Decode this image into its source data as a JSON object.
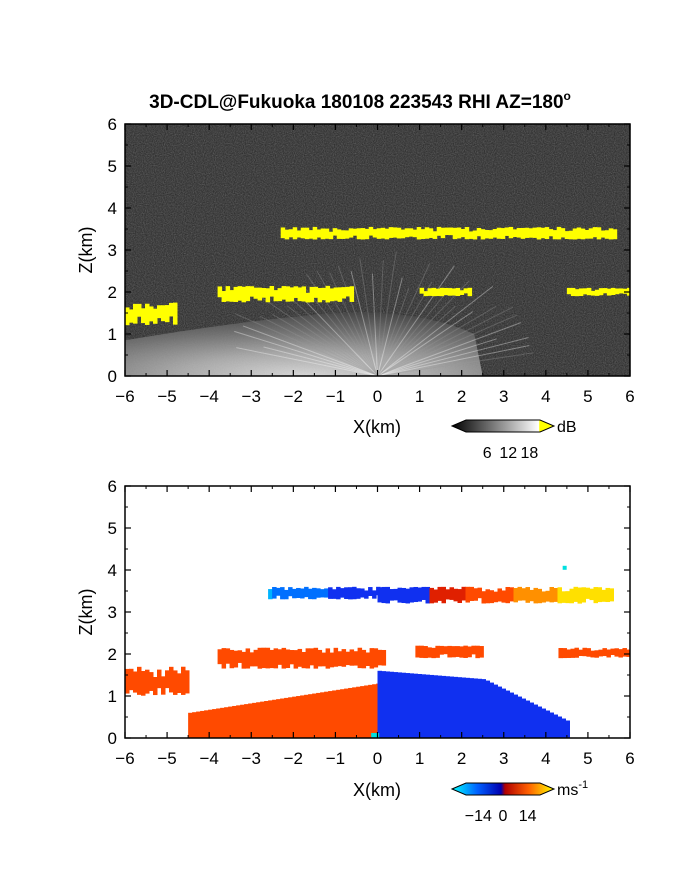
{
  "chart_data": [
    {
      "type": "heatmap",
      "panel": "reflectivity",
      "title": "3D-CDL@Fukuoka 180108 223543 RHI AZ=180",
      "title_superscript": "o",
      "xlabel": "X(km)",
      "ylabel": "Z(km)",
      "xlim": [
        -6,
        6
      ],
      "ylim": [
        0,
        6
      ],
      "xticks": [
        "-6",
        "-5",
        "-4",
        "-3",
        "-2",
        "-1",
        "0",
        "1",
        "2",
        "3",
        "4",
        "5",
        "6"
      ],
      "yticks": [
        "0",
        "1",
        "2",
        "3",
        "4",
        "5",
        "6"
      ],
      "background_color": "#262626",
      "colorbar": {
        "unit": "dB",
        "ticks": [
          "6",
          "12",
          "18"
        ],
        "tick_values": [
          6,
          12,
          18
        ],
        "range": [
          0,
          21
        ],
        "colors": [
          "#000000",
          "#ffffff",
          "#ffff00"
        ]
      },
      "echo_layers": [
        {
          "name": "upper layer",
          "x_range": [
            -2.3,
            5.6
          ],
          "z_range": [
            3.25,
            3.55
          ],
          "value_dB": 18
        },
        {
          "name": "middle layer west",
          "x_range": [
            -3.8,
            -0.6
          ],
          "z_range": [
            1.75,
            2.15
          ],
          "value_dB": 18
        },
        {
          "name": "middle layer east",
          "x_range": [
            1.0,
            2.2
          ],
          "z_range": [
            1.9,
            2.1
          ],
          "value_dB": 18
        },
        {
          "name": "middle layer far east",
          "x_range": [
            4.5,
            6.0
          ],
          "z_range": [
            1.9,
            2.1
          ],
          "value_dB": 18
        },
        {
          "name": "lower layer west",
          "x_range": [
            -6.0,
            -4.8
          ],
          "z_range": [
            1.2,
            1.75
          ],
          "value_dB": 16
        },
        {
          "name": "boundary layer fan",
          "x_range": [
            -6.0,
            2.3
          ],
          "z_range": [
            0,
            1.5
          ],
          "value_dB": 11
        }
      ]
    },
    {
      "type": "heatmap",
      "panel": "radial velocity",
      "xlabel": "X(km)",
      "ylabel": "Z(km)",
      "xlim": [
        -6,
        6
      ],
      "ylim": [
        0,
        6
      ],
      "xticks": [
        "-6",
        "-5",
        "-4",
        "-3",
        "-2",
        "-1",
        "0",
        "1",
        "2",
        "3",
        "4",
        "5",
        "6"
      ],
      "yticks": [
        "0",
        "1",
        "2",
        "3",
        "4",
        "5",
        "6"
      ],
      "background_color": "#ffffff",
      "colorbar": {
        "unit": "ms",
        "unit_superscript": "-1",
        "ticks": [
          "-14",
          "0",
          "14"
        ],
        "tick_values": [
          -14,
          0,
          14
        ],
        "range": [
          -21,
          21
        ],
        "colors": [
          "#00ffff",
          "#0050ff",
          "#0000c8",
          "#c80000",
          "#ff5000",
          "#ffff00"
        ]
      },
      "echo_layers": [
        {
          "name": "upper layer west",
          "x_range": [
            -2.6,
            0
          ],
          "z_range": [
            3.3,
            3.6
          ],
          "value_ms": -12
        },
        {
          "name": "upper layer east",
          "x_range": [
            0,
            5.6
          ],
          "z_range": [
            3.2,
            3.6
          ],
          "value_ms": 10
        },
        {
          "name": "middle layer west",
          "x_range": [
            -3.8,
            0.1
          ],
          "z_range": [
            1.65,
            2.15
          ],
          "value_ms": 4
        },
        {
          "name": "middle layer east",
          "x_range": [
            0.9,
            2.5
          ],
          "z_range": [
            1.9,
            2.2
          ],
          "value_ms": 4
        },
        {
          "name": "middle layer far east",
          "x_range": [
            4.3,
            6.0
          ],
          "z_range": [
            1.9,
            2.15
          ],
          "value_ms": 5
        },
        {
          "name": "lower layer west",
          "x_range": [
            -6.0,
            -4.5
          ],
          "z_range": [
            1.0,
            1.7
          ],
          "value_ms": 5
        },
        {
          "name": "boundary layer west",
          "x_range": [
            -4.5,
            0
          ],
          "z_range": [
            0,
            1.3
          ],
          "value_ms": 4
        },
        {
          "name": "boundary layer east",
          "x_range": [
            0,
            4.5
          ],
          "z_range": [
            0,
            1.6
          ],
          "value_ms": -7
        }
      ]
    }
  ]
}
